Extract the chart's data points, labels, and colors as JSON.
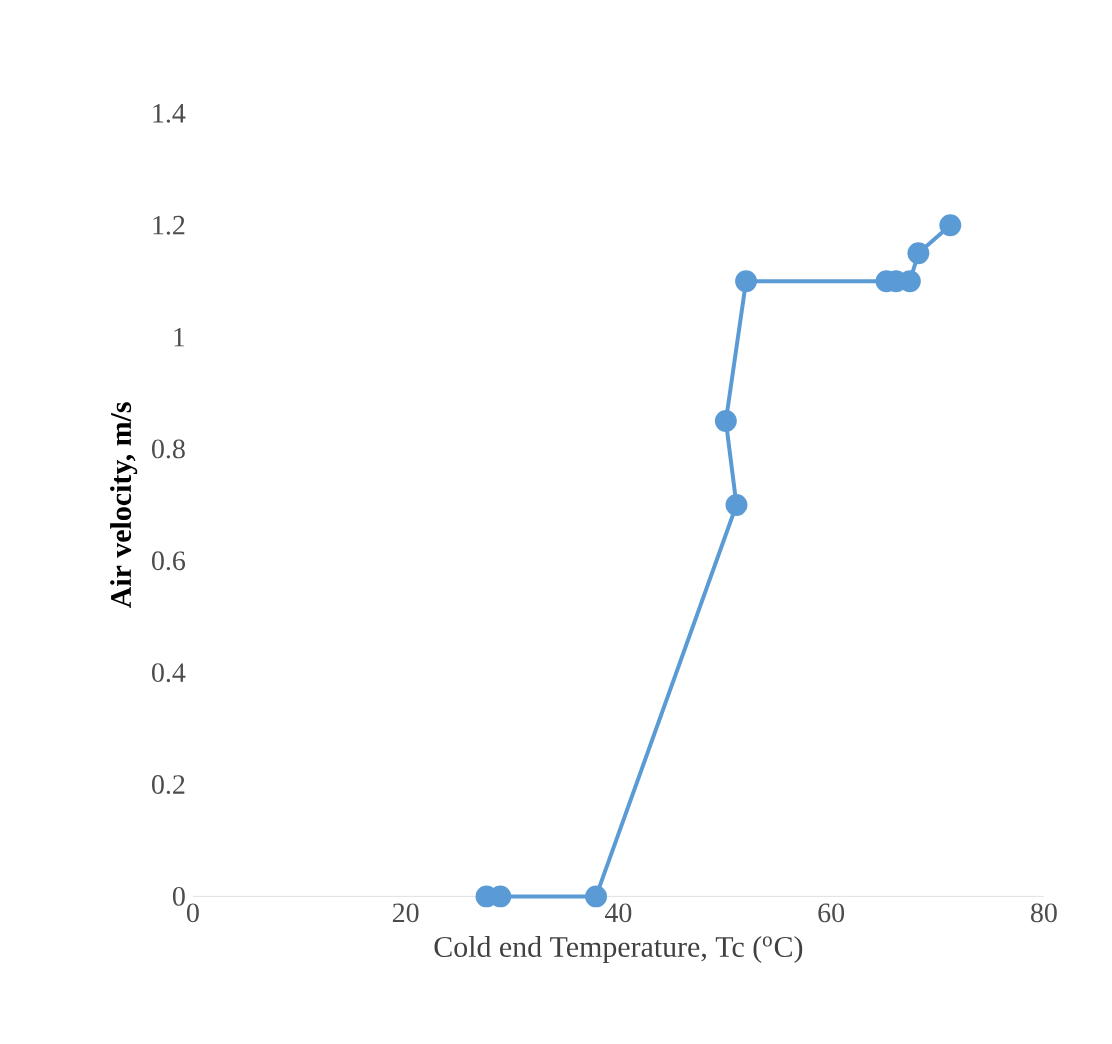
{
  "chart_data": {
    "type": "line",
    "xlabel": "Cold end Temperature, Tc ($^{o}$C)",
    "ylabel": "Air velocity, m/s",
    "series": [
      {
        "color": "#5b9bd5",
        "x": [
          27.6,
          28.9,
          37.9,
          51.1,
          50.1,
          52.0,
          65.2,
          66.1,
          67.4,
          68.2,
          71.2
        ],
        "values": [
          0,
          0,
          0,
          0.7,
          0.85,
          1.1,
          1.1,
          1.1,
          1.1,
          1.15,
          1.2
        ]
      }
    ],
    "xlim": [
      0,
      80
    ],
    "xticks": [
      0,
      20,
      40,
      60,
      80
    ],
    "ylim": [
      0,
      1.4
    ],
    "yticks": [
      0,
      0.2,
      0.4,
      0.6,
      0.8,
      1,
      1.2,
      1.4
    ],
    "grid": false,
    "marker": "circle",
    "line_style": "solid"
  }
}
